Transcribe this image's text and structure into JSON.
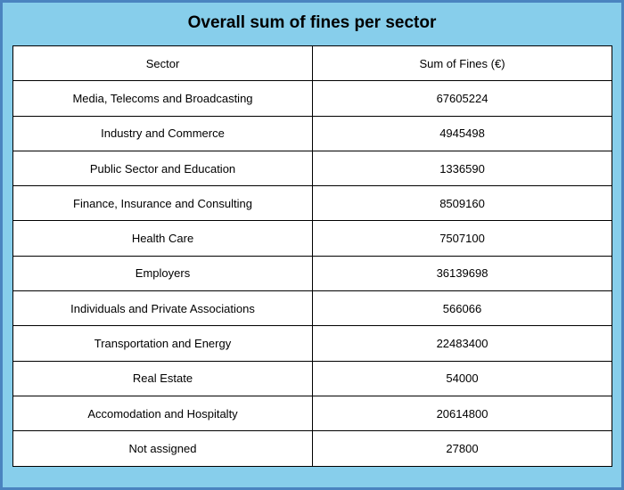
{
  "chart_data": {
    "type": "table",
    "title": "Overall sum of fines per sector",
    "columns": [
      "Sector",
      "Sum of Fines (€)"
    ],
    "rows": [
      {
        "sector": "Media, Telecoms and Broadcasting",
        "fines": "67605224"
      },
      {
        "sector": "Industry and Commerce",
        "fines": "4945498"
      },
      {
        "sector": "Public Sector and Education",
        "fines": "1336590"
      },
      {
        "sector": "Finance, Insurance and Consulting",
        "fines": "8509160"
      },
      {
        "sector": "Health Care",
        "fines": "7507100"
      },
      {
        "sector": "Employers",
        "fines": "36139698"
      },
      {
        "sector": "Individuals and Private Associations",
        "fines": "566066"
      },
      {
        "sector": "Transportation and Energy",
        "fines": "22483400"
      },
      {
        "sector": "Real Estate",
        "fines": "54000"
      },
      {
        "sector": "Accomodation and Hospitalty",
        "fines": "20614800"
      },
      {
        "sector": "Not assigned",
        "fines": "27800"
      }
    ]
  },
  "colors": {
    "background": "#87ceeb",
    "border": "#4a84c0",
    "cell": "#ffffff",
    "grid": "#000000"
  }
}
